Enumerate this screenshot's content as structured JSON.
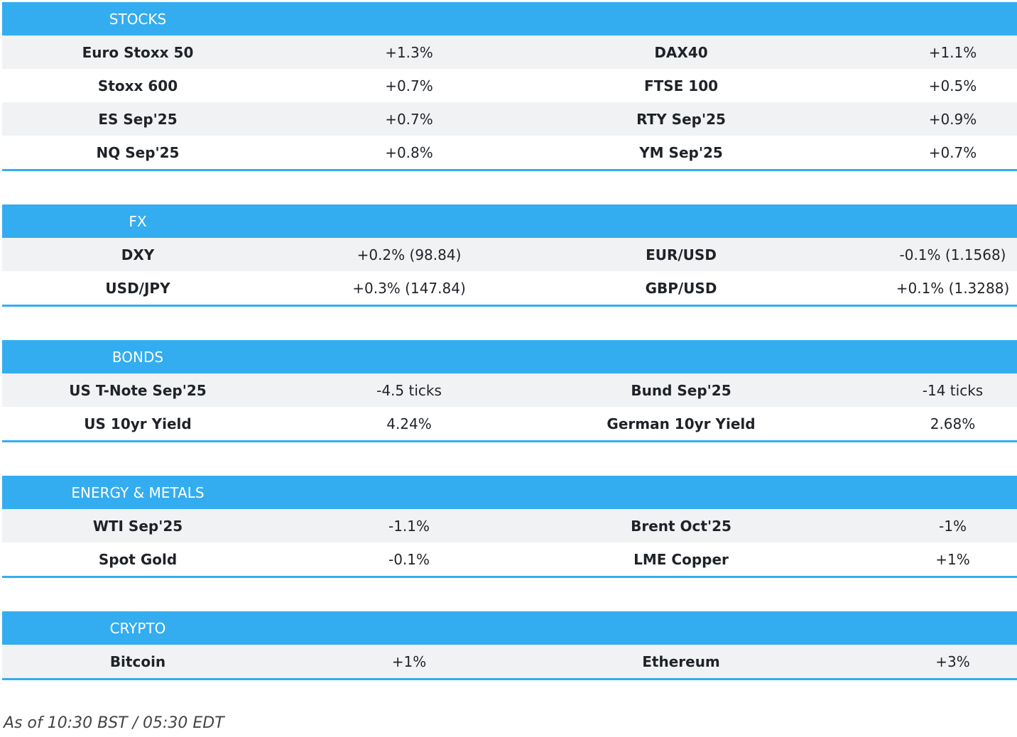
{
  "sections": [
    {
      "title": "STOCKS",
      "rows": [
        [
          "Euro Stoxx 50",
          "+1.3%",
          "DAX40",
          "+1.1%"
        ],
        [
          "Stoxx 600",
          "+0.7%",
          "FTSE 100",
          "+0.5%"
        ],
        [
          "ES Sep'25",
          "+0.7%",
          "RTY Sep'25",
          "+0.9%"
        ],
        [
          "NQ Sep'25",
          "+0.8%",
          "YM Sep'25",
          "+0.7%"
        ]
      ]
    },
    {
      "title": "FX",
      "rows": [
        [
          "DXY",
          "+0.2% (98.84)",
          "EUR/USD",
          "-0.1% (1.1568)"
        ],
        [
          "USD/JPY",
          "+0.3% (147.84)",
          "GBP/USD",
          "+0.1% (1.3288)"
        ]
      ]
    },
    {
      "title": "BONDS",
      "rows": [
        [
          "US T-Note Sep'25",
          "-4.5 ticks",
          "Bund Sep'25",
          "-14 ticks"
        ],
        [
          "US 10yr Yield",
          "4.24%",
          "German 10yr Yield",
          "2.68%"
        ]
      ]
    },
    {
      "title": "ENERGY & METALS",
      "rows": [
        [
          "WTI Sep'25",
          "-1.1%",
          "Brent Oct'25",
          "-1%"
        ],
        [
          "Spot Gold",
          "-0.1%",
          "LME Copper",
          "+1%"
        ]
      ]
    },
    {
      "title": "CRYPTO",
      "rows": [
        [
          "Bitcoin",
          "+1%",
          "Ethereum",
          "+3%"
        ]
      ]
    }
  ],
  "footer_note": "As of 10:30 BST / 05:30 EDT"
}
